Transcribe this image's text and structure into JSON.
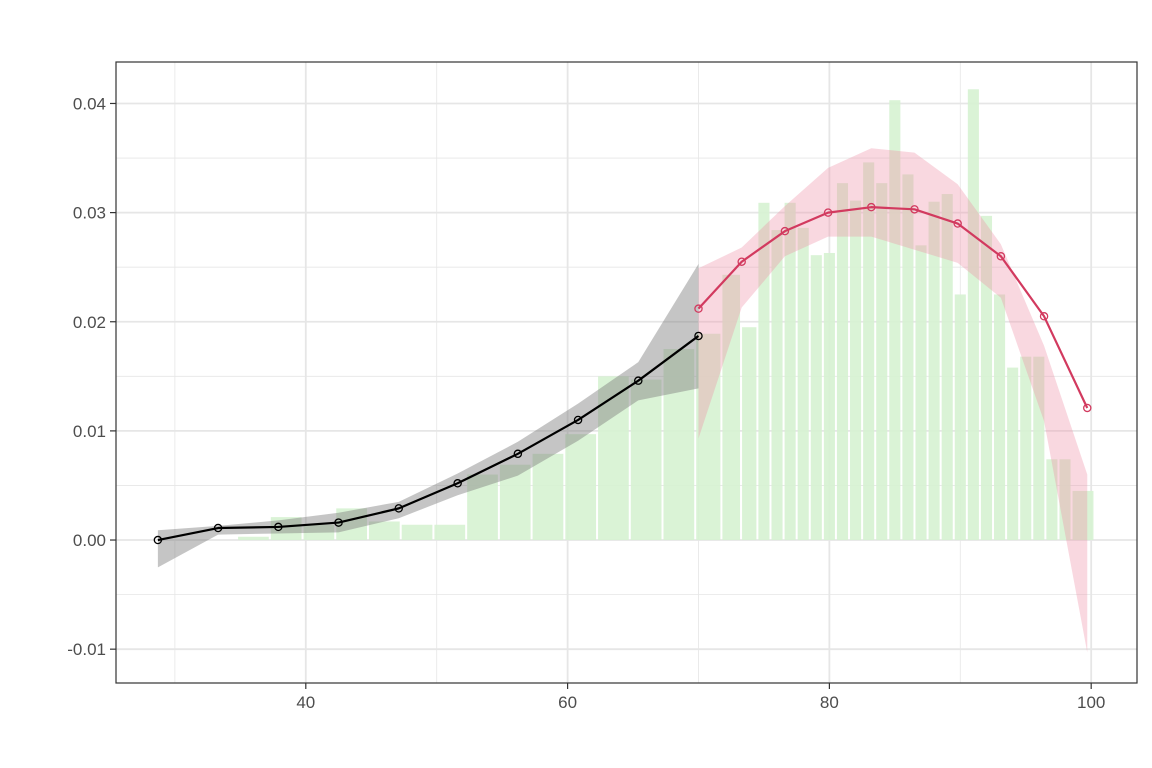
{
  "chart_data": {
    "type": "line",
    "title": "",
    "xlabel": "",
    "ylabel": "",
    "xlim": [
      25.5,
      103.5
    ],
    "ylim": [
      -0.0131,
      0.0438
    ],
    "grid": true,
    "x_ticks": [
      40,
      60,
      80,
      100
    ],
    "x_tick_labels": [
      "40",
      "60",
      "80",
      "100"
    ],
    "y_ticks": [
      -0.01,
      0.0,
      0.01,
      0.02,
      0.03,
      0.04
    ],
    "y_tick_labels": [
      "-0.01",
      "0.00",
      "0.01",
      "0.02",
      "0.03",
      "0.04"
    ],
    "colors": {
      "histogram": "#d6f2d1",
      "series_1_line": "#000000",
      "series_1_band": "#7f7f7f",
      "series_2_line": "#d23a5f",
      "series_2_band": "#ee8fa5",
      "grid": "#e6e6e6",
      "panel_border": "#333333"
    },
    "histogram": {
      "bar_width": 2.5,
      "x": [
        36,
        38.5,
        41,
        43.5,
        46,
        48.5,
        51,
        53.5,
        56,
        58.5,
        61,
        63.5,
        66,
        68.5,
        71,
        72.5,
        74,
        75,
        76,
        77,
        78,
        79,
        80,
        81,
        82,
        83,
        84,
        85,
        86,
        87,
        88,
        89,
        90,
        91,
        92,
        93,
        94,
        95,
        96,
        97,
        98,
        99
      ],
      "values": [
        0.0003,
        0.0021,
        0.0014,
        0.0029,
        0.0017,
        0.0014,
        0.0014,
        0.006,
        0.0069,
        0.0079,
        0.0097,
        0.015,
        0.0147,
        0.0175,
        0.0189,
        0.0243,
        0.0195,
        0.0309,
        0.0284,
        0.0309,
        0.0286,
        0.0261,
        0.0263,
        0.0327,
        0.0311,
        0.0346,
        0.0327,
        0.0403,
        0.0335,
        0.027,
        0.031,
        0.0317,
        0.0225,
        0.0413,
        0.0297,
        0.0225,
        0.0158,
        0.0168,
        0.0168,
        0.0074,
        0.0074,
        0.0045
      ]
    },
    "series": [
      {
        "x": [
          28.7,
          33.3,
          37.9,
          42.5,
          47.1,
          51.6,
          56.2,
          60.8,
          65.4,
          70.0
        ],
        "values": [
          0.0,
          0.0011,
          0.0012,
          0.0016,
          0.0029,
          0.0052,
          0.0079,
          0.011,
          0.0146,
          0.0187
        ],
        "lower": [
          -0.0025,
          0.0005,
          0.0006,
          0.0007,
          0.002,
          0.0041,
          0.0059,
          0.0091,
          0.0128,
          0.0139
        ],
        "upper": [
          0.0009,
          0.0013,
          0.0018,
          0.0025,
          0.0035,
          0.0061,
          0.009,
          0.0125,
          0.0163,
          0.0253
        ]
      },
      {
        "x": [
          70.0,
          73.3,
          76.6,
          79.9,
          83.2,
          86.5,
          89.8,
          93.1,
          96.4,
          99.7
        ],
        "values": [
          0.0212,
          0.0255,
          0.0283,
          0.03,
          0.0305,
          0.0303,
          0.029,
          0.026,
          0.0205,
          0.0121
        ],
        "lower": [
          0.0093,
          0.0213,
          0.026,
          0.0278,
          0.0278,
          0.0266,
          0.0254,
          0.0222,
          0.0109,
          -0.0103
        ],
        "upper": [
          0.0249,
          0.0268,
          0.0306,
          0.0341,
          0.0359,
          0.0355,
          0.0326,
          0.0271,
          0.0178,
          0.006
        ]
      }
    ]
  }
}
